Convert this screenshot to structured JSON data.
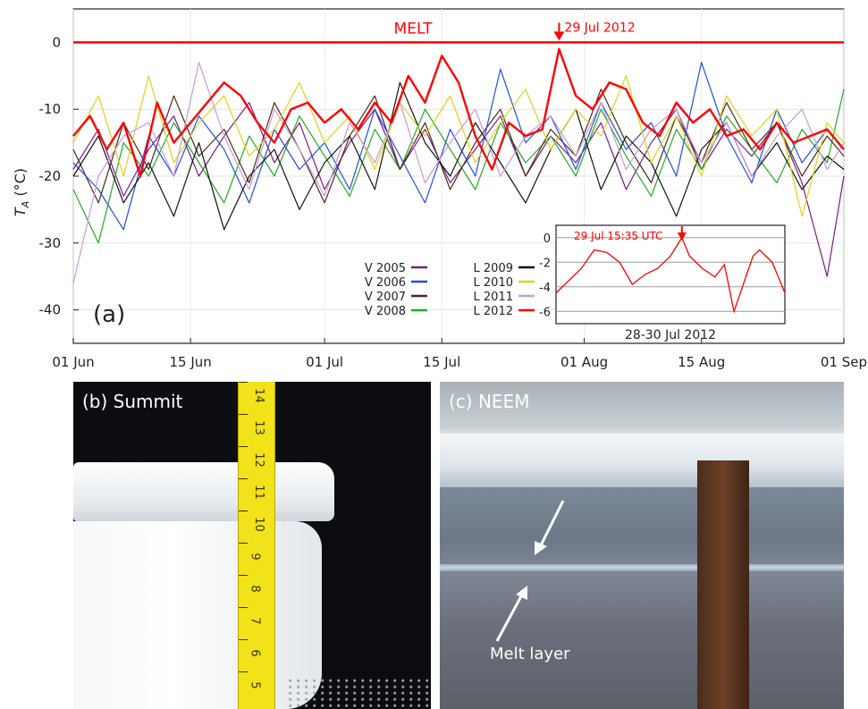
{
  "chart_data": {
    "type": "line",
    "panel_label": "(a)",
    "ylabel": "T_A (°C)",
    "ylabel_main": "T",
    "ylabel_sub": "A",
    "ylabel_unit": " (°C)",
    "ylim": [
      -45,
      5
    ],
    "yticks": [
      0,
      -10,
      -20,
      -30,
      -40
    ],
    "xticks": [
      "01 Jun",
      "15 Jun",
      "01 Jul",
      "15 Jul",
      "01 Aug",
      "15 Aug",
      "01 Sep"
    ],
    "xticks_day": [
      0,
      14,
      30,
      44,
      61,
      75,
      92
    ],
    "x_range_days": [
      0,
      92
    ],
    "reference_line": {
      "y": 0,
      "label": "MELT",
      "color": "#ff0000"
    },
    "annotation": {
      "text": "29 Jul 2012",
      "x_day": 58
    },
    "legend": {
      "placement": "bottom-center",
      "entries": [
        {
          "label": "V 2005",
          "color": "#7a1a8a"
        },
        {
          "label": "V 2006",
          "color": "#1f4fe0"
        },
        {
          "label": "V 2007",
          "color": "#4a2a1a"
        },
        {
          "label": "V 2008",
          "color": "#22aa22"
        },
        {
          "label": "L 2009",
          "color": "#111111"
        },
        {
          "label": "L 2010",
          "color": "#e0d21a"
        },
        {
          "label": "L 2011",
          "color": "#c99ad6"
        },
        {
          "label": "L 2012",
          "color": "#ff0000"
        }
      ]
    },
    "series": [
      {
        "name": "L 2012",
        "color": "#ff0000",
        "x_day": [
          0,
          2,
          4,
          6,
          8,
          10,
          12,
          14,
          16,
          18,
          20,
          22,
          24,
          26,
          28,
          30,
          32,
          34,
          36,
          38,
          40,
          42,
          44,
          46,
          48,
          50,
          52,
          54,
          56,
          58,
          60,
          62,
          64,
          66,
          68,
          70,
          72,
          74,
          76,
          78,
          80,
          82,
          84,
          86,
          88,
          90,
          92
        ],
        "y": [
          -14,
          -11,
          -16,
          -12,
          -20,
          -9,
          -15,
          -12,
          -9,
          -6,
          -8,
          -12,
          -15,
          -10,
          -9,
          -12,
          -10,
          -13,
          -9,
          -12,
          -5,
          -9,
          -2,
          -6,
          -14,
          -19,
          -12,
          -14,
          -13,
          -1,
          -8,
          -10,
          -6,
          -7,
          -12,
          -14,
          -9,
          -12,
          -10,
          -14,
          -13,
          -16,
          -12,
          -15,
          -14,
          -13,
          -16
        ]
      },
      {
        "name": "L 2011",
        "color": "#c99ad6",
        "x_day": [
          0,
          3,
          6,
          9,
          12,
          15,
          18,
          21,
          24,
          27,
          30,
          33,
          36,
          39,
          42,
          45,
          48,
          51,
          54,
          57,
          60,
          63,
          66,
          69,
          72,
          75,
          78,
          81,
          84,
          87,
          90,
          92
        ],
        "y": [
          -36,
          -20,
          -14,
          -12,
          -20,
          -3,
          -14,
          -22,
          -10,
          -16,
          -23,
          -12,
          -18,
          -9,
          -21,
          -15,
          -10,
          -20,
          -14,
          -11,
          -17,
          -9,
          -19,
          -13,
          -10,
          -18,
          -12,
          -20,
          -14,
          -10,
          -19,
          -15
        ]
      },
      {
        "name": "L 2010",
        "color": "#e0d21a",
        "x_day": [
          0,
          3,
          6,
          9,
          12,
          15,
          18,
          21,
          24,
          27,
          30,
          33,
          36,
          39,
          42,
          45,
          48,
          51,
          54,
          57,
          60,
          63,
          66,
          69,
          72,
          75,
          78,
          81,
          84,
          87,
          90,
          92
        ],
        "y": [
          -15,
          -8,
          -20,
          -5,
          -18,
          -12,
          -8,
          -17,
          -13,
          -6,
          -15,
          -11,
          -19,
          -9,
          -14,
          -8,
          -18,
          -12,
          -7,
          -16,
          -10,
          -14,
          -5,
          -18,
          -11,
          -20,
          -8,
          -14,
          -10,
          -26,
          -12,
          -15
        ]
      },
      {
        "name": "L 2009",
        "color": "#111111",
        "x_day": [
          0,
          3,
          6,
          9,
          12,
          15,
          18,
          21,
          24,
          27,
          30,
          33,
          36,
          39,
          42,
          45,
          48,
          51,
          54,
          57,
          60,
          63,
          66,
          69,
          72,
          75,
          78,
          81,
          84,
          87,
          90,
          92
        ],
        "y": [
          -20,
          -14,
          -24,
          -18,
          -26,
          -15,
          -28,
          -20,
          -16,
          -25,
          -18,
          -14,
          -22,
          -6,
          -15,
          -20,
          -12,
          -18,
          -24,
          -16,
          -10,
          -22,
          -14,
          -18,
          -26,
          -16,
          -12,
          -20,
          -15,
          -22,
          -17,
          -19
        ]
      },
      {
        "name": "V 2006",
        "color": "#1f4fe0",
        "x_day": [
          0,
          3,
          6,
          9,
          12,
          15,
          18,
          21,
          24,
          27,
          30,
          33,
          36,
          39,
          42,
          45,
          48,
          51,
          54,
          57,
          60,
          63,
          66,
          69,
          72,
          75,
          78,
          81,
          84,
          87,
          90,
          92
        ],
        "y": [
          -18,
          -22,
          -28,
          -14,
          -20,
          -11,
          -16,
          -24,
          -13,
          -19,
          -15,
          -22,
          -10,
          -17,
          -24,
          -13,
          -20,
          -4,
          -15,
          -11,
          -19,
          -9,
          -16,
          -12,
          -20,
          -3,
          -14,
          -21,
          -10,
          -18,
          -13,
          -16
        ]
      },
      {
        "name": "V 2007",
        "color": "#4a2a1a",
        "x_day": [
          0,
          3,
          6,
          9,
          12,
          15,
          18,
          21,
          24,
          27,
          30,
          33,
          36,
          39,
          42,
          45,
          48,
          51,
          54,
          57,
          60,
          63,
          66,
          69,
          72,
          75,
          78,
          81,
          84,
          87,
          90,
          92
        ],
        "y": [
          -16,
          -24,
          -12,
          -19,
          -8,
          -17,
          -13,
          -21,
          -9,
          -16,
          -24,
          -14,
          -8,
          -19,
          -12,
          -22,
          -15,
          -10,
          -20,
          -13,
          -17,
          -7,
          -15,
          -21,
          -11,
          -18,
          -9,
          -16,
          -12,
          -20,
          -14,
          -17
        ]
      },
      {
        "name": "V 2008",
        "color": "#22aa22",
        "x_day": [
          0,
          3,
          6,
          9,
          12,
          15,
          18,
          21,
          24,
          27,
          30,
          33,
          36,
          39,
          42,
          45,
          48,
          51,
          54,
          57,
          60,
          63,
          66,
          69,
          72,
          75,
          78,
          81,
          84,
          87,
          90,
          92
        ],
        "y": [
          -22,
          -30,
          -15,
          -20,
          -12,
          -18,
          -24,
          -14,
          -20,
          -11,
          -17,
          -23,
          -13,
          -19,
          -10,
          -16,
          -22,
          -12,
          -18,
          -14,
          -20,
          -10,
          -17,
          -23,
          -13,
          -19,
          -11,
          -16,
          -21,
          -13,
          -18,
          -7
        ]
      },
      {
        "name": "V 2005",
        "color": "#7a1a8a",
        "x_day": [
          0,
          3,
          6,
          9,
          12,
          15,
          18,
          21,
          24,
          27,
          30,
          33,
          36,
          39,
          42,
          45,
          48,
          51,
          54,
          57,
          60,
          63,
          66,
          69,
          72,
          75,
          78,
          81,
          84,
          87,
          90,
          92
        ],
        "y": [
          -19,
          -13,
          -23,
          -16,
          -11,
          -20,
          -14,
          -9,
          -18,
          -12,
          -22,
          -15,
          -10,
          -19,
          -13,
          -21,
          -16,
          -11,
          -20,
          -14,
          -18,
          -12,
          -22,
          -15,
          -10,
          -19,
          -13,
          -17,
          -12,
          -21,
          -35,
          -20
        ]
      }
    ],
    "inset": {
      "title": "28-30 Jul 2012",
      "annotation": "29 Jul 15:35 UTC",
      "annotation_x_hour": 39.6,
      "ylim": [
        -7,
        1
      ],
      "yticks": [
        0,
        -2,
        -4,
        -6
      ],
      "x_range_hours": [
        0,
        72
      ],
      "x_hours": [
        0,
        4,
        8,
        12,
        16,
        20,
        24,
        28,
        32,
        36,
        39.6,
        42,
        46,
        50,
        53,
        56,
        60,
        62,
        64,
        68,
        72
      ],
      "y": [
        -4.5,
        -3.5,
        -2.5,
        -1,
        -1.2,
        -2,
        -3.8,
        -3,
        -2.5,
        -1.5,
        0,
        -1.5,
        -2.5,
        -3.2,
        -2.2,
        -6,
        -3,
        -1.5,
        -1,
        -2,
        -4.5
      ]
    }
  },
  "panels": {
    "b_label": "(b) Summit",
    "c_label": "(c) NEEM",
    "melt_layer_label": "Melt layer"
  },
  "ruler_b": {
    "marks": [
      "14",
      "13",
      "12",
      "11",
      "10",
      "9",
      "8",
      "7",
      "6",
      "5"
    ]
  }
}
